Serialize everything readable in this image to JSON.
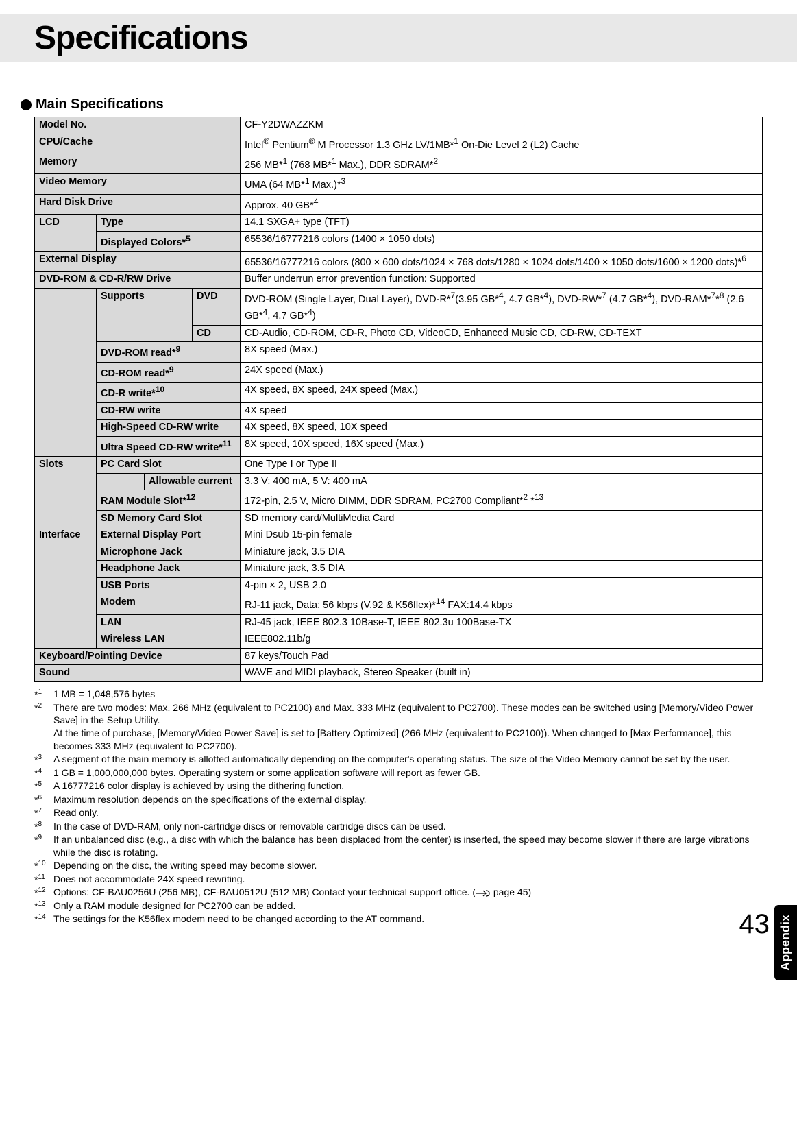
{
  "page": {
    "title": "Specifications",
    "section": "Main Specifications",
    "sideTab": "Appendix",
    "pageNumber": "43"
  },
  "rows": {
    "model": {
      "label": "Model No.",
      "value": "CF-Y2DWAZZKM"
    },
    "cpu": {
      "label": "CPU/Cache",
      "value_html": "Intel<sup>®</sup> Pentium<sup>®</sup> M Processor 1.3 GHz LV/1MB*<sup>1</sup> On-Die Level 2 (L2) Cache"
    },
    "memory": {
      "label": "Memory",
      "value_html": "256 MB*<sup>1</sup>  (768 MB*<sup>1</sup> Max.), DDR SDRAM*<sup>2</sup>"
    },
    "videoMemory": {
      "label": "Video Memory",
      "value_html": "UMA  (64 MB*<sup>1</sup> Max.)*<sup>3</sup>"
    },
    "hdd": {
      "label": "Hard Disk Drive",
      "value_html": "Approx. 40 GB*<sup>4</sup>"
    },
    "lcd": {
      "group": "LCD",
      "type": {
        "label": "Type",
        "value": "14.1 SXGA+ type (TFT)"
      },
      "colors": {
        "label_html": "Displayed Colors*<sup>5</sup>",
        "value": "65536/16777216 colors (1400 × 1050 dots)"
      }
    },
    "extDisplay": {
      "label": "External Display",
      "value_html": "65536/16777216 colors (800 × 600 dots/1024 × 768 dots/1280 × 1024 dots/1400 × 1050 dots/1600 × 1200 dots)*<sup>6</sup>"
    },
    "dvd": {
      "header": {
        "label": "DVD-ROM & CD-R/RW Drive",
        "value": "Buffer underrun error prevention function: Supported"
      },
      "supports": {
        "group": "Supports",
        "dvd": {
          "label": "DVD",
          "value_html": "DVD-ROM (Single Layer, Dual Layer), DVD-R*<sup>7</sup>(3.95 GB*<sup>4</sup>, 4.7 GB*<sup>4</sup>), DVD-RW*<sup>7</sup> (4.7 GB*<sup>4</sup>), DVD-RAM*<sup>7</sup>*<sup>8</sup> (2.6 GB*<sup>4</sup>, 4.7 GB*<sup>4</sup>)"
        },
        "cd": {
          "label": "CD",
          "value": "CD-Audio, CD-ROM, CD-R, Photo CD, VideoCD, Enhanced Music CD, CD-RW, CD-TEXT"
        }
      },
      "dvdRomRead": {
        "label_html": "DVD-ROM read*<sup>9</sup>",
        "value": "8X speed (Max.)"
      },
      "cdRomRead": {
        "label_html": "CD-ROM read*<sup>9</sup>",
        "value": "24X speed (Max.)"
      },
      "cdrWrite": {
        "label_html": "CD-R write*<sup>10</sup>",
        "value": "4X speed, 8X speed, 24X speed (Max.)"
      },
      "cdrwWrite": {
        "label": "CD-RW write",
        "value": "4X speed"
      },
      "hsCdrw": {
        "label": "High-Speed CD-RW write",
        "value": "4X speed, 8X speed, 10X speed"
      },
      "usCdrw": {
        "label_html": "Ultra Speed CD-RW write*<sup>11</sup>",
        "value": "8X speed, 10X speed, 16X speed (Max.)"
      }
    },
    "slots": {
      "group": "Slots",
      "pcCard": {
        "label": "PC Card Slot",
        "value": "One Type I or Type II"
      },
      "allowable": {
        "label": "Allowable current",
        "value": "3.3 V: 400 mA, 5 V: 400 mA"
      },
      "ramModule": {
        "label_html": "RAM Module Slot*<sup>12</sup>",
        "value_html": "172-pin, 2.5 V, Micro DIMM, DDR SDRAM, PC2700 Compliant*<sup>2</sup> *<sup>13</sup>"
      },
      "sdSlot": {
        "label": "SD Memory Card Slot",
        "value": "SD memory card/MultiMedia Card"
      }
    },
    "interface": {
      "group": "Interface",
      "extPort": {
        "label": "External Display Port",
        "value": "Mini Dsub 15-pin female"
      },
      "mic": {
        "label": "Microphone Jack",
        "value": "Miniature jack, 3.5 DIA"
      },
      "headphone": {
        "label": "Headphone Jack",
        "value": "Miniature jack, 3.5 DIA"
      },
      "usb": {
        "label": "USB Ports",
        "value": "4-pin × 2, USB 2.0"
      },
      "modem": {
        "label": "Modem",
        "value_html": "RJ-11 jack, Data: 56 kbps (V.92 & K56flex)*<sup>14</sup>   FAX:14.4 kbps"
      },
      "lan": {
        "label": "LAN",
        "value": "RJ-45 jack, IEEE 802.3 10Base-T, IEEE 802.3u 100Base-TX"
      },
      "wlan": {
        "label": "Wireless LAN",
        "value": "IEEE802.11b/g"
      }
    },
    "keyboard": {
      "label": "Keyboard/Pointing Device",
      "value": "87 keys/Touch Pad"
    },
    "sound": {
      "label": "Sound",
      "value": "WAVE and MIDI playback, Stereo Speaker (built in)"
    }
  },
  "footnotes": [
    {
      "n": "1",
      "text": "1 MB = 1,048,576 bytes"
    },
    {
      "n": "2",
      "text": "There are two modes: Max. 266 MHz (equivalent to PC2100) and Max. 333 MHz (equivalent to PC2700).  These modes can be switched using [Memory/Video Power Save] in the Setup Utility.\nAt the time of purchase, [Memory/Video Power Save] is set to [Battery Optimized] (266 MHz (equivalent to PC2100)).  When changed to [Max Performance], this becomes 333 MHz (equivalent to PC2700)."
    },
    {
      "n": "3",
      "text": "A segment of the main memory is allotted automatically depending on the computer's operating status.  The size of the Video Memory cannot be set by the user."
    },
    {
      "n": "4",
      "text": "1 GB = 1,000,000,000 bytes. Operating system or some application software will report as fewer GB."
    },
    {
      "n": "5",
      "text": "A 16777216 color display is achieved by using the dithering function."
    },
    {
      "n": "6",
      "text": "Maximum resolution depends on the specifications of the external display."
    },
    {
      "n": "7",
      "text": "Read only."
    },
    {
      "n": "8",
      "text": "In the case of DVD-RAM, only non-cartridge discs or removable cartridge discs can be used."
    },
    {
      "n": "9",
      "text": "If an unbalanced disc (e.g., a disc with which the balance has been displaced from the center) is inserted, the speed may become slower if there are large vibrations while the disc is rotating."
    },
    {
      "n": "10",
      "text": "Depending on the disc, the writing speed may become slower."
    },
    {
      "n": "11",
      "text": "Does not accommodate 24X speed rewriting."
    },
    {
      "n": "12",
      "text_html": "Options: CF-BAU0256U (256 MB), CF-BAU0512U (512 MB) Contact your technical support office. (<svg class='hand-icon' width='22' height='14' viewBox='0 0 22 14'><path d='M1 7 L14 7 M11 3 L15 7 L11 11 M15 3 Q20 3 20 7 Q20 11 15 11' stroke='#000' stroke-width='1.2' fill='none'/></svg> page 45)"
    },
    {
      "n": "13",
      "text": "Only a RAM module designed for PC2700 can be added."
    },
    {
      "n": "14",
      "text": "The settings for the K56flex modem need to be changed according to the AT command."
    }
  ]
}
